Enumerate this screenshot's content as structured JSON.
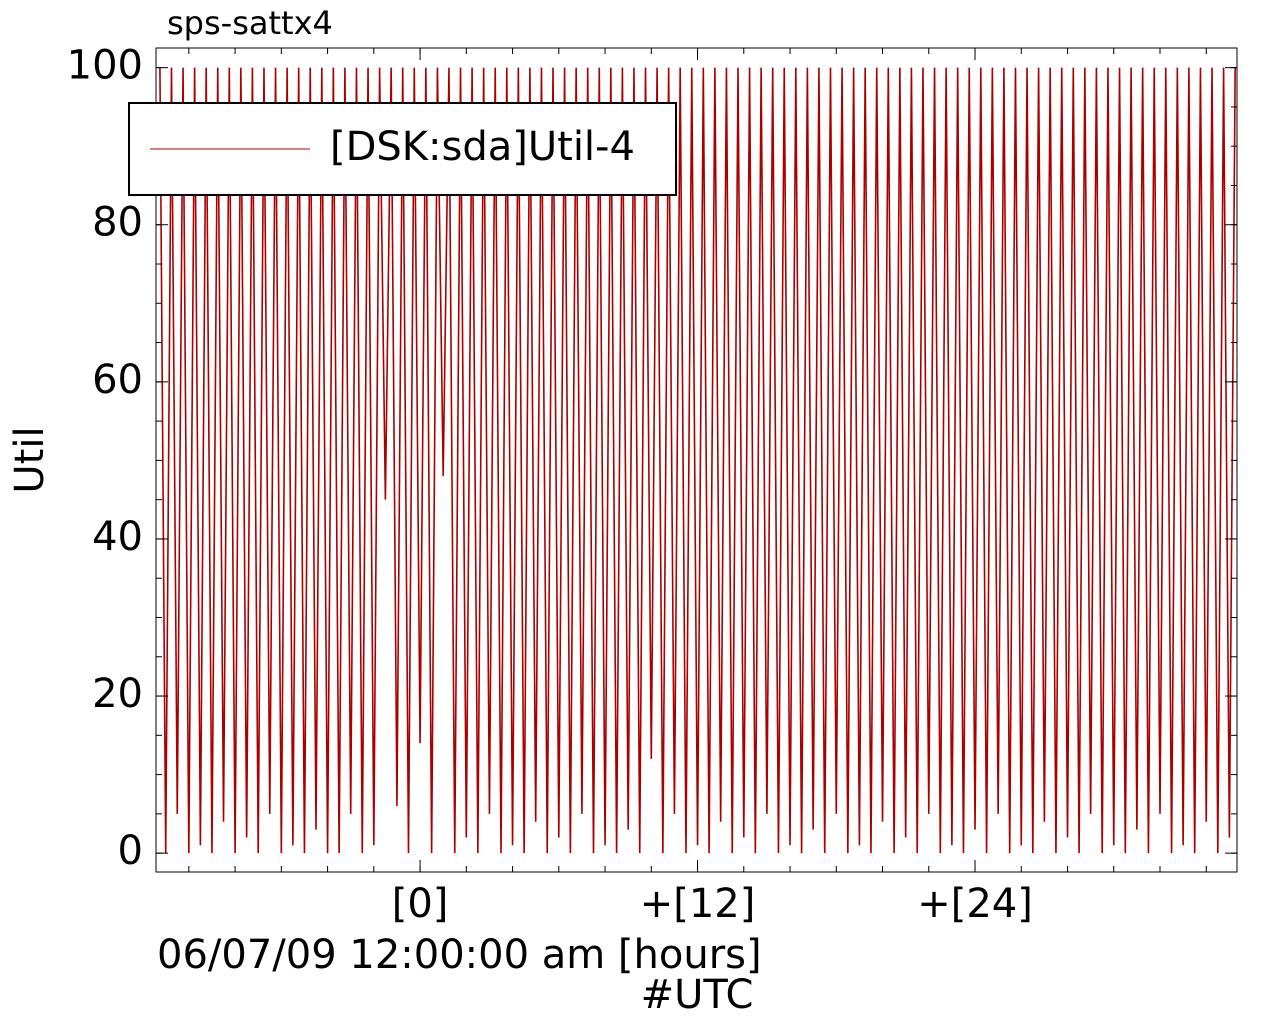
{
  "chart_data": {
    "type": "line",
    "title": "sps-sattx4",
    "ylabel": "Util",
    "xlabel": [
      "06/07/09 12:00:00 am [hours]",
      "#UTC"
    ],
    "legend": "upper left",
    "xminor": 6,
    "yminor": 4,
    "xlim": [
      -11.42,
      35.33
    ],
    "ylim": [
      -2.4,
      102.5
    ],
    "xticks": [
      {
        "value": 0,
        "label": "[0]"
      },
      {
        "value": 12,
        "label": "+[12]"
      },
      {
        "value": 24,
        "label": "+[24]"
      }
    ],
    "yticks": [
      0,
      20,
      40,
      60,
      80,
      100
    ],
    "x": [
      -11.25,
      -11,
      -10.75,
      -10.5,
      -10.25,
      -10,
      -9.75,
      -9.5,
      -9.25,
      -9,
      -8.75,
      -8.5,
      -8.25,
      -8,
      -7.75,
      -7.5,
      -7.25,
      -7,
      -6.75,
      -6.5,
      -6.25,
      -6,
      -5.75,
      -5.5,
      -5.25,
      -5,
      -4.75,
      -4.5,
      -4.25,
      -4,
      -3.75,
      -3.5,
      -3.25,
      -3,
      -2.75,
      -2.5,
      -2.25,
      -2,
      -1.75,
      -1.5,
      -1.25,
      -1,
      -0.75,
      -0.5,
      -0.25,
      0,
      0.25,
      0.5,
      0.75,
      1,
      1.25,
      1.5,
      1.75,
      2,
      2.25,
      2.5,
      2.75,
      3,
      3.25,
      3.5,
      3.75,
      4,
      4.25,
      4.5,
      4.75,
      5,
      5.25,
      5.5,
      5.75,
      6,
      6.25,
      6.5,
      6.75,
      7,
      7.25,
      7.5,
      7.75,
      8,
      8.25,
      8.5,
      8.75,
      9,
      9.25,
      9.5,
      9.75,
      10,
      10.25,
      10.5,
      10.75,
      11,
      11.25,
      11.5,
      11.75,
      12,
      12.25,
      12.5,
      12.75,
      13,
      13.25,
      13.5,
      13.75,
      14,
      14.25,
      14.5,
      14.75,
      15,
      15.25,
      15.5,
      15.75,
      16,
      16.25,
      16.5,
      16.75,
      17,
      17.25,
      17.5,
      17.75,
      18,
      18.25,
      18.5,
      18.75,
      19,
      19.25,
      19.5,
      19.75,
      20,
      20.25,
      20.5,
      20.75,
      21,
      21.25,
      21.5,
      21.75,
      22,
      22.25,
      22.5,
      22.75,
      23,
      23.25,
      23.5,
      23.75,
      24,
      24.25,
      24.5,
      24.75,
      25,
      25.25,
      25.5,
      25.75,
      26,
      26.25,
      26.5,
      26.75,
      27,
      27.25,
      27.5,
      27.75,
      28,
      28.25,
      28.5,
      28.75,
      29,
      29.25,
      29.5,
      29.75,
      30,
      30.25,
      30.5,
      30.75,
      31,
      31.25,
      31.5,
      31.75,
      32,
      32.25,
      32.5,
      32.75,
      33,
      33.25,
      33.5,
      33.75,
      34,
      34.25,
      34.5,
      34.75,
      35,
      35.25
    ],
    "series": [
      {
        "name": "[DSK:sda]Util-4",
        "color": "#aa0000",
        "values": [
          100,
          0,
          100,
          5,
          100,
          0,
          100,
          1,
          100,
          0,
          100,
          4,
          100,
          0,
          100,
          2,
          100,
          0,
          100,
          5,
          100,
          0,
          100,
          1,
          100,
          0,
          100,
          3,
          100,
          0,
          100,
          0,
          100,
          5,
          100,
          0,
          100,
          1,
          100,
          45,
          100,
          6,
          100,
          0,
          100,
          14,
          100,
          0,
          100,
          48,
          100,
          0,
          100,
          2,
          100,
          0,
          100,
          5,
          100,
          0,
          100,
          1,
          100,
          0,
          100,
          4,
          100,
          0,
          100,
          2,
          100,
          0,
          100,
          5,
          100,
          0,
          100,
          1,
          100,
          0,
          100,
          3,
          100,
          0,
          100,
          12,
          100,
          0,
          100,
          5,
          100,
          0,
          100,
          1,
          100,
          0,
          100,
          4,
          100,
          0,
          100,
          2,
          100,
          0,
          100,
          5,
          100,
          0,
          100,
          1,
          100,
          0,
          100,
          3,
          100,
          0,
          100,
          5,
          100,
          0,
          100,
          1,
          100,
          0,
          100,
          4,
          100,
          0,
          100,
          2,
          100,
          0,
          100,
          5,
          100,
          0,
          100,
          1,
          100,
          0,
          100,
          3,
          100,
          0,
          100,
          5,
          100,
          0,
          100,
          1,
          100,
          0,
          100,
          4,
          100,
          0,
          100,
          2,
          100,
          0,
          100,
          5,
          100,
          0,
          100,
          1,
          100,
          0,
          100,
          3,
          100,
          0,
          100,
          5,
          100,
          0,
          100,
          1,
          100,
          0,
          100,
          4,
          100,
          0,
          100,
          2,
          100
        ]
      }
    ]
  }
}
